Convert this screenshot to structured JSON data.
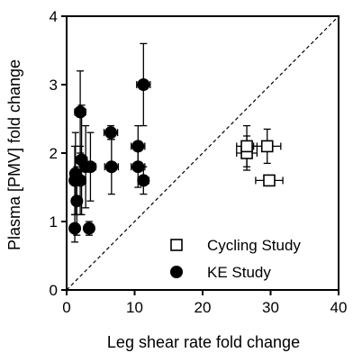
{
  "chart_data": {
    "type": "scatter",
    "xlabel": "Leg shear rate fold change",
    "ylabel": "Plasma [PMV] fold change",
    "xlim": [
      0,
      40
    ],
    "ylim": [
      0,
      4
    ],
    "xticks": [
      0,
      10,
      20,
      30,
      40
    ],
    "yticks": [
      0,
      1,
      2,
      3,
      4
    ],
    "grid": false,
    "legend": "bottom-right",
    "identity_line": true,
    "series": [
      {
        "name": "Cycling Study",
        "marker": "open-square",
        "points": [
          {
            "x": 26.5,
            "y": 2.0,
            "xerr": 1.5,
            "yerr": 0.25
          },
          {
            "x": 26.5,
            "y": 2.1,
            "xerr": 1.5,
            "yerr": 0.3
          },
          {
            "x": 29.5,
            "y": 2.1,
            "xerr": 2.0,
            "yerr": 0.25
          },
          {
            "x": 29.8,
            "y": 1.6,
            "xerr": 2.0,
            "yerr": 0.0
          }
        ]
      },
      {
        "name": "KE Study",
        "marker": "filled-circle",
        "points": [
          {
            "x": 2.0,
            "y": 2.6,
            "xerr": 0.8,
            "yerr": 0.6
          },
          {
            "x": 11.3,
            "y": 3.0,
            "xerr": 1.0,
            "yerr": 0.6
          },
          {
            "x": 2.2,
            "y": 1.9,
            "xerr": 0.8,
            "yerr": 0.8
          },
          {
            "x": 1.3,
            "y": 1.7,
            "xerr": 0.6,
            "yerr": 0.6
          },
          {
            "x": 2.0,
            "y": 1.6,
            "xerr": 0.8,
            "yerr": 0.5
          },
          {
            "x": 1.2,
            "y": 1.6,
            "xerr": 0.5,
            "yerr": 0.5
          },
          {
            "x": 1.5,
            "y": 1.3,
            "xerr": 0.5,
            "yerr": 0.5
          },
          {
            "x": 1.2,
            "y": 0.9,
            "xerr": 0.6,
            "yerr": 0.2
          },
          {
            "x": 3.3,
            "y": 0.9,
            "xerr": 0.6,
            "yerr": 0.1
          },
          {
            "x": 2.8,
            "y": 1.8,
            "xerr": 0.8,
            "yerr": 0.6
          },
          {
            "x": 3.5,
            "y": 1.8,
            "xerr": 0.8,
            "yerr": 0.5
          },
          {
            "x": 6.5,
            "y": 2.3,
            "xerr": 1.0,
            "yerr": 0.1
          },
          {
            "x": 6.6,
            "y": 1.8,
            "xerr": 1.0,
            "yerr": 0.4
          },
          {
            "x": 10.5,
            "y": 2.1,
            "xerr": 1.0,
            "yerr": 0.3
          },
          {
            "x": 10.5,
            "y": 1.8,
            "xerr": 1.0,
            "yerr": 0.3
          },
          {
            "x": 11.3,
            "y": 1.6,
            "xerr": 0.8,
            "yerr": 0.2
          }
        ]
      }
    ]
  },
  "legend_entries": [
    {
      "label": "Cycling Study",
      "marker": "open-square"
    },
    {
      "label": "KE Study",
      "marker": "filled-circle"
    }
  ]
}
